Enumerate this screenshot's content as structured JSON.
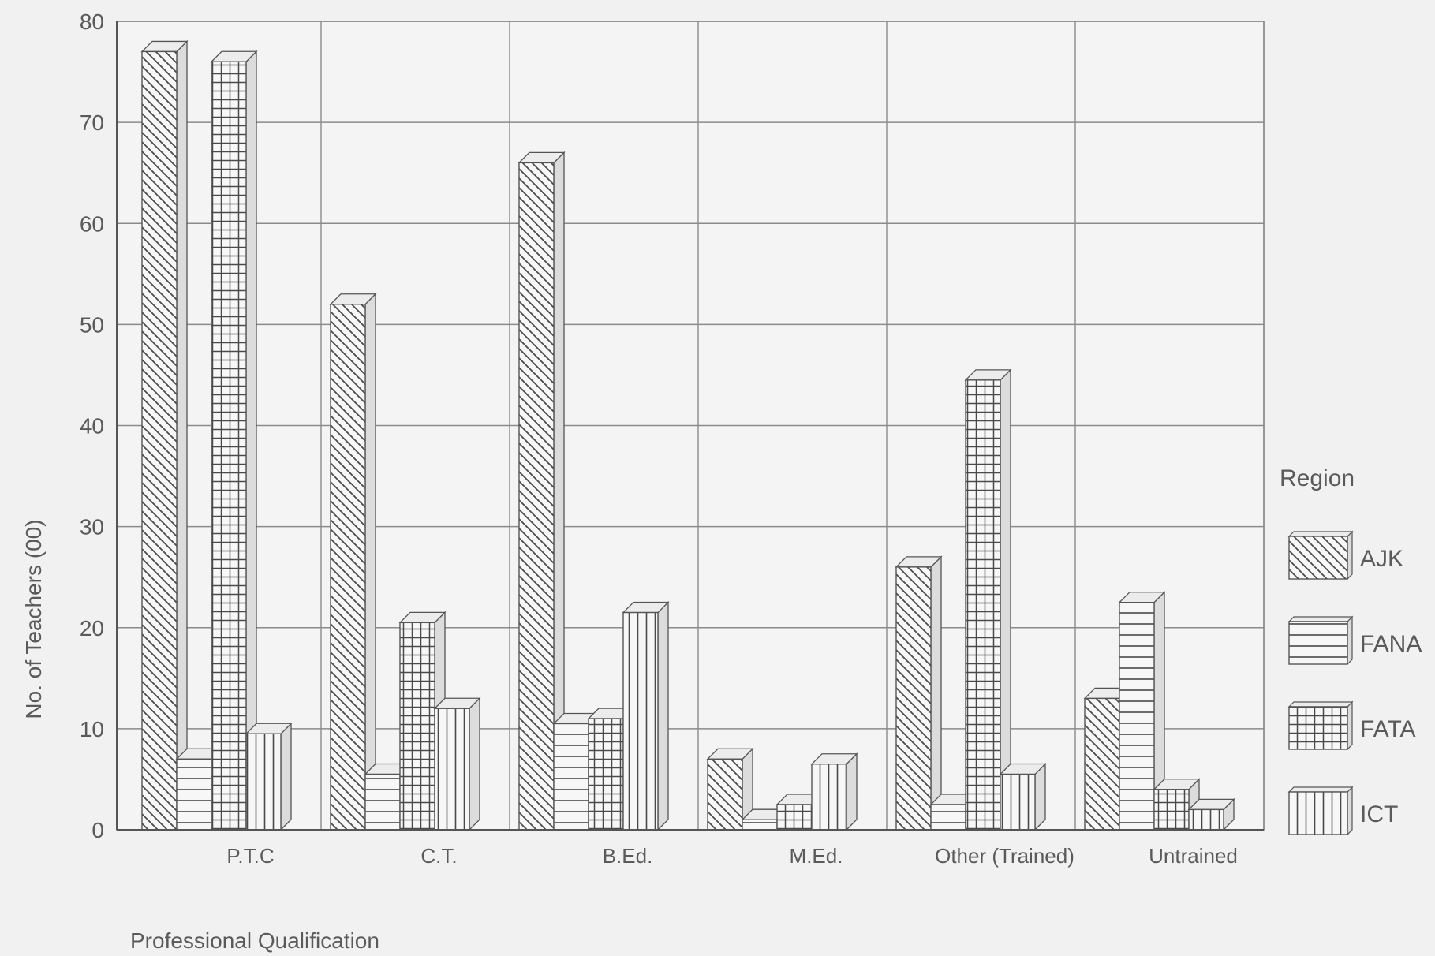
{
  "chart_data": {
    "type": "bar",
    "title": "",
    "xlabel": "Professional Qualification",
    "ylabel": "No. of Teachers (00)",
    "categories": [
      "P.T.C",
      "C.T.",
      "B.Ed.",
      "M.Ed.",
      "Other (Trained)",
      "Untrained"
    ],
    "series": [
      {
        "name": "AJK",
        "pattern": "diagonal",
        "values": [
          77,
          52,
          66,
          7,
          26,
          13
        ]
      },
      {
        "name": "FANA",
        "pattern": "horizontal",
        "values": [
          7,
          5.5,
          10.5,
          1,
          2.5,
          22.5
        ]
      },
      {
        "name": "FATA",
        "pattern": "grid",
        "values": [
          76,
          20.5,
          11,
          2.5,
          44.5,
          4
        ]
      },
      {
        "name": "ICT",
        "pattern": "vertical",
        "values": [
          9.5,
          12,
          21.5,
          6.5,
          5.5,
          2
        ]
      }
    ],
    "ylim": [
      0,
      80
    ],
    "yticks": [
      0,
      10,
      20,
      30,
      40,
      50,
      60,
      70,
      80
    ],
    "grid": true,
    "legend": {
      "title": "Region",
      "placement": "right"
    },
    "colors": {
      "background": "#f1f1f1",
      "line": "#555555",
      "grid": "#8a8a8a"
    }
  }
}
